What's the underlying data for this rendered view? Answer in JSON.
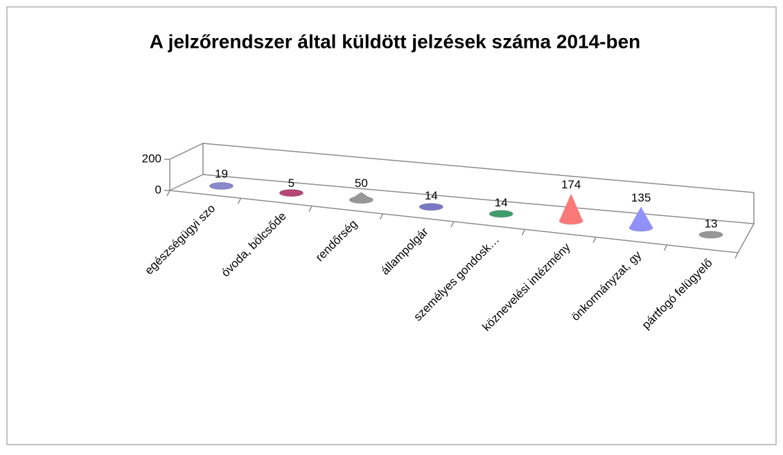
{
  "chart_data": {
    "type": "cone3d",
    "title": "A jelzőrendszer által küldött jelzések száma 2014-ben",
    "categories": [
      "egészségügyi szo",
      "óvoda, bölcsőde",
      "rendőrség",
      "állampolgár",
      "személyes gondosk…",
      "köznevelési intézmény",
      "önkormányzat, gy",
      "pártfogó felügyelő"
    ],
    "values": [
      19,
      5,
      50,
      14,
      14,
      174,
      135,
      13
    ],
    "colors": [
      "#8a8ad0",
      "#b8487a",
      "#9a9a9a",
      "#7a7ac8",
      "#3f9f6f",
      "#ff7b7b",
      "#9494ff",
      "#9a9a9a"
    ],
    "ylim": [
      0,
      200
    ],
    "yticks": [
      0,
      200
    ]
  }
}
